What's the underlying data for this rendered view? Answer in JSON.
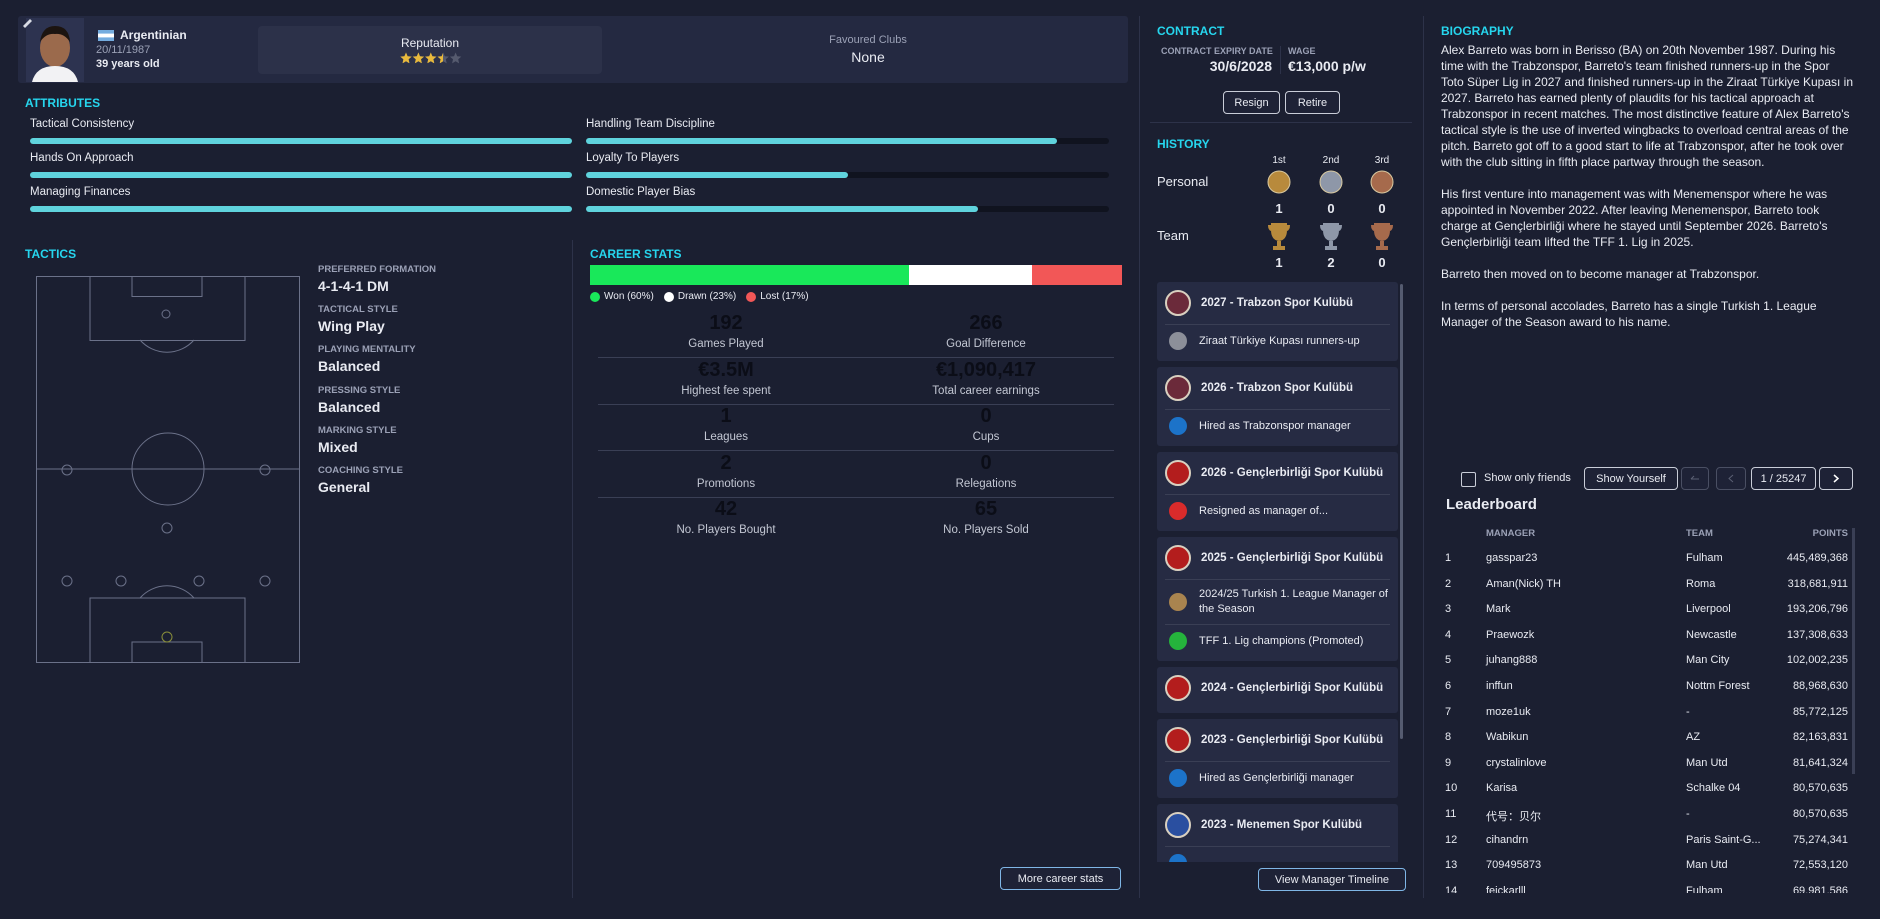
{
  "profile": {
    "nationality": "Argentinian",
    "dob": "20/11/1987",
    "age": "39 years old",
    "reputation_label": "Reputation",
    "reputation_stars": 3.5,
    "reputation_max": 5,
    "favoured_clubs_label": "Favoured Clubs",
    "favoured_clubs": "None"
  },
  "attributes": {
    "title": "ATTRIBUTES",
    "color": "#5fd3dd",
    "items": [
      {
        "name": "Tactical Consistency",
        "value": 100
      },
      {
        "name": "Handling Team Discipline",
        "value": 90
      },
      {
        "name": "Hands On Approach",
        "value": 100
      },
      {
        "name": "Loyalty To Players",
        "value": 50
      },
      {
        "name": "Managing Finances",
        "value": 100
      },
      {
        "name": "Domestic Player Bias",
        "value": 75
      }
    ]
  },
  "tactics": {
    "title": "TACTICS",
    "items": [
      {
        "label": "PREFERRED FORMATION",
        "value": "4-1-4-1 DM"
      },
      {
        "label": "TACTICAL STYLE",
        "value": "Wing Play"
      },
      {
        "label": "PLAYING MENTALITY",
        "value": "Balanced"
      },
      {
        "label": "PRESSING STYLE",
        "value": "Balanced"
      },
      {
        "label": "MARKING STYLE",
        "value": "Mixed"
      },
      {
        "label": "COACHING STYLE",
        "value": "General"
      }
    ]
  },
  "career": {
    "title": "CAREER STATS",
    "split": [
      {
        "name": "Won",
        "value": 60,
        "label": "Won (60%)",
        "color": "#19e85a"
      },
      {
        "name": "Drawn",
        "value": 23,
        "label": "Drawn (23%)",
        "color": "#ffffff"
      },
      {
        "name": "Lost",
        "value": 17,
        "label": "Lost (17%)",
        "color": "#f25757"
      }
    ],
    "stats": [
      {
        "value": "192",
        "label": "Games Played"
      },
      {
        "value": "266",
        "label": "Goal Difference"
      },
      {
        "value": "€3.5M",
        "label": "Highest fee spent"
      },
      {
        "value": "€1,090,417",
        "label": "Total career earnings"
      },
      {
        "value": "1",
        "label": "Leagues"
      },
      {
        "value": "0",
        "label": "Cups"
      },
      {
        "value": "2",
        "label": "Promotions"
      },
      {
        "value": "0",
        "label": "Relegations"
      },
      {
        "value": "42",
        "label": "No. Players Bought"
      },
      {
        "value": "65",
        "label": "No. Players Sold"
      }
    ],
    "button": "More career stats"
  },
  "contract": {
    "title": "CONTRACT",
    "expiry_label": "CONTRACT EXPIRY DATE",
    "expiry": "30/6/2028",
    "wage_label": "WAGE",
    "wage": "€13,000 p/w",
    "buttons": [
      "Resign",
      "Retire"
    ]
  },
  "history": {
    "title": "HISTORY",
    "columns": [
      "1st",
      "2nd",
      "3rd"
    ],
    "rows": [
      {
        "label": "Personal",
        "counts": [
          1,
          0,
          0
        ]
      },
      {
        "label": "Team",
        "counts": [
          1,
          2,
          0
        ]
      }
    ]
  },
  "timeline": {
    "entries": [
      {
        "club": "2027 - Trabzon Spor Kulübü",
        "crest_color": "#6b2a3a",
        "events": [
          {
            "text": "Ziraat Türkiye Kupası runners-up",
            "icon_color": "#8c8f99"
          }
        ]
      },
      {
        "club": "2026 - Trabzon Spor Kulübü",
        "crest_color": "#6b2a3a",
        "events": [
          {
            "text": "Hired as Trabzonspor manager",
            "icon_color": "#1c73c9"
          }
        ]
      },
      {
        "club": "2026 - Gençlerbirliği Spor Kulübü",
        "crest_color": "#b31d1d",
        "events": [
          {
            "text": "Resigned as manager of...",
            "icon_color": "#d92b2b"
          }
        ]
      },
      {
        "club": "2025 - Gençlerbirliği Spor Kulübü",
        "crest_color": "#b31d1d",
        "events": [
          {
            "text": "2024/25 Turkish 1. League Manager of the Season",
            "icon_color": "#a9844f"
          },
          {
            "text": "TFF 1. Lig champions (Promoted)",
            "icon_color": "#25b33c"
          }
        ]
      },
      {
        "club": "2024 - Gençlerbirliği Spor Kulübü",
        "crest_color": "#b31d1d",
        "events": []
      },
      {
        "club": "2023 - Gençlerbirliği Spor Kulübü",
        "crest_color": "#b31d1d",
        "events": [
          {
            "text": "Hired as Gençlerbirliği manager",
            "icon_color": "#1c73c9"
          }
        ]
      },
      {
        "club": "2023 - Menemen Spor Kulübü",
        "crest_color": "#2a4fa0",
        "events": [
          {
            "text": "",
            "icon_color": "#1c73c9"
          }
        ]
      }
    ],
    "button": "View Manager Timeline"
  },
  "biography": {
    "title": "BIOGRAPHY",
    "paragraphs": [
      "Alex Barreto was born in Berisso (BA) on 20th November 1987. During his time with the Trabzonspor, Barreto's team finished runners-up in the Spor Toto Süper Lig in 2027 and finished runners-up in the Ziraat Türkiye Kupası in 2027. Barreto has earned plenty of plaudits for his tactical approach at Trabzonspor in recent matches. The most distinctive feature of Alex Barreto's tactical style is the use of inverted wingbacks to overload central areas of the pitch. Barreto got off to a good start to life at Trabzonspor, after he took over with the club sitting in fifth place partway through the season.",
      "His first venture into management was with Menemenspor where he was appointed in November 2022. After leaving Menemenspor, Barreto took charge at Gençlerbirliği where he stayed until September 2026. Barreto's Gençlerbirliği team lifted the TFF 1. Lig in 2025.",
      "Barreto then moved on to become manager at Trabzonspor.",
      "In terms of personal accolades, Barreto has a single Turkish 1. League Manager of the Season award to his name."
    ]
  },
  "leaderboard": {
    "friends_label": "Show only friends",
    "show_yourself": "Show Yourself",
    "page": "1 / 25247",
    "title": "Leaderboard",
    "columns": [
      "MANAGER",
      "TEAM",
      "POINTS"
    ],
    "rows": [
      {
        "rank": 1,
        "manager": "gasspar23",
        "team": "Fulham",
        "points": "445,489,368"
      },
      {
        "rank": 2,
        "manager": "Aman(Nick) TH",
        "team": "Roma",
        "points": "318,681,911"
      },
      {
        "rank": 3,
        "manager": "Mark",
        "team": "Liverpool",
        "points": "193,206,796"
      },
      {
        "rank": 4,
        "manager": "Praewozk",
        "team": "Newcastle",
        "points": "137,308,633"
      },
      {
        "rank": 5,
        "manager": "juhang888",
        "team": "Man City",
        "points": "102,002,235"
      },
      {
        "rank": 6,
        "manager": "inffun",
        "team": "Nottm Forest",
        "points": "88,968,630"
      },
      {
        "rank": 7,
        "manager": "moze1uk",
        "team": "-",
        "points": "85,772,125"
      },
      {
        "rank": 8,
        "manager": "Wabikun",
        "team": "AZ",
        "points": "82,163,831"
      },
      {
        "rank": 9,
        "manager": "crystalinlove",
        "team": "Man Utd",
        "points": "81,641,324"
      },
      {
        "rank": 10,
        "manager": "Karisa",
        "team": "Schalke 04",
        "points": "80,570,635"
      },
      {
        "rank": 11,
        "manager": "代号：贝尔",
        "team": "-",
        "points": "80,570,635"
      },
      {
        "rank": 12,
        "manager": "cihandrn",
        "team": "Paris Saint-G...",
        "points": "75,274,341"
      },
      {
        "rank": 13,
        "manager": "709495873",
        "team": "Man Utd",
        "points": "72,553,120"
      },
      {
        "rank": 14,
        "manager": "feickarlll",
        "team": "Fulham",
        "points": "69,981,586"
      }
    ]
  }
}
